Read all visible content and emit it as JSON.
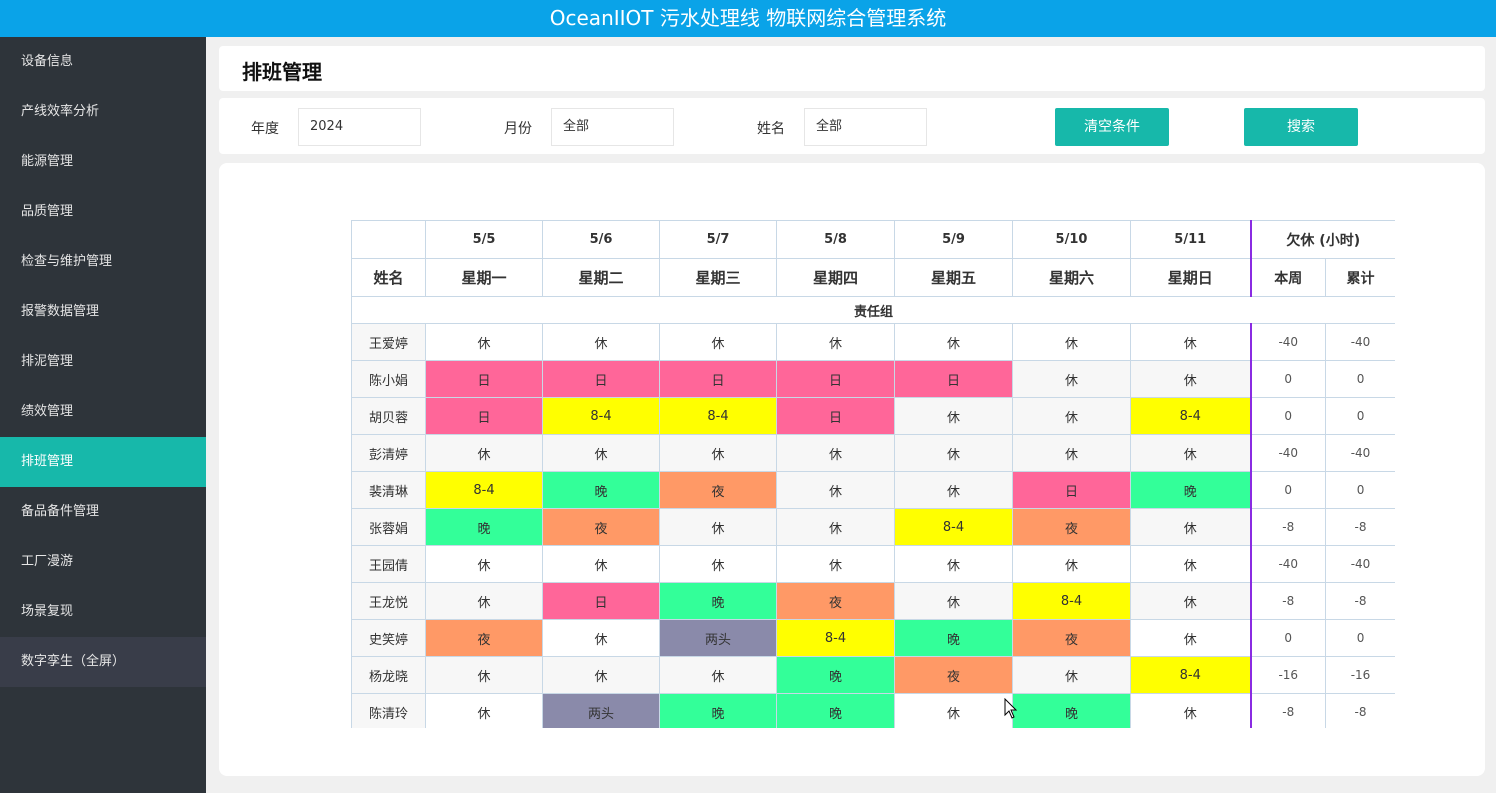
{
  "app": {
    "title": "OceanIIOT 污水处理线 物联网综合管理系统"
  },
  "sidebar": {
    "items": [
      {
        "label": "设备信息",
        "active": false
      },
      {
        "label": "产线效率分析",
        "active": false
      },
      {
        "label": "能源管理",
        "active": false
      },
      {
        "label": "品质管理",
        "active": false
      },
      {
        "label": "检查与维护管理",
        "active": false
      },
      {
        "label": "报警数据管理",
        "active": false
      },
      {
        "label": "排泥管理",
        "active": false
      },
      {
        "label": "绩效管理",
        "active": false
      },
      {
        "label": "排班管理",
        "active": true
      },
      {
        "label": "备品备件管理",
        "active": false
      },
      {
        "label": "工厂漫游",
        "active": false
      },
      {
        "label": "场景复现",
        "active": false
      },
      {
        "label": "数字孪生（全屏）",
        "active": false
      }
    ]
  },
  "page": {
    "title": "排班管理"
  },
  "filters": {
    "year_label": "年度",
    "year_value": "2024",
    "month_label": "月份",
    "month_value": "全部",
    "name_label": "姓名",
    "name_value": "全部",
    "clear_label": "清空条件",
    "search_label": "搜索"
  },
  "schedule": {
    "dates": [
      "5/5",
      "5/6",
      "5/7",
      "5/8",
      "5/9",
      "5/10",
      "5/11"
    ],
    "days": [
      "星期一",
      "星期二",
      "星期三",
      "星期四",
      "星期五",
      "星期六",
      "星期日"
    ],
    "name_header": "姓名",
    "owe_header": "欠休 (小时)",
    "week_header": "本周",
    "total_header": "累计",
    "group_name": "责任组",
    "shift_colors": {
      "日": "#ff6699",
      "8-4": "#ffff00",
      "晚": "#33ff99",
      "夜": "#ff9966",
      "两头": "#8a8aaa"
    },
    "rows": [
      {
        "name": "王爱婷",
        "shifts": [
          "休",
          "休",
          "休",
          "休",
          "休",
          "休",
          "休"
        ],
        "week": "-40",
        "total": "-40"
      },
      {
        "name": "陈小娟",
        "shifts": [
          "日",
          "日",
          "日",
          "日",
          "日",
          "休",
          "休"
        ],
        "week": "0",
        "total": "0"
      },
      {
        "name": "胡贝蓉",
        "shifts": [
          "日",
          "8-4",
          "8-4",
          "日",
          "休",
          "休",
          "8-4"
        ],
        "week": "0",
        "total": "0"
      },
      {
        "name": "彭清婷",
        "shifts": [
          "休",
          "休",
          "休",
          "休",
          "休",
          "休",
          "休"
        ],
        "week": "-40",
        "total": "-40"
      },
      {
        "name": "裴清琳",
        "shifts": [
          "8-4",
          "晚",
          "夜",
          "休",
          "休",
          "日",
          "晚"
        ],
        "week": "0",
        "total": "0"
      },
      {
        "name": "张蓉娟",
        "shifts": [
          "晚",
          "夜",
          "休",
          "休",
          "8-4",
          "夜",
          "休"
        ],
        "week": "-8",
        "total": "-8"
      },
      {
        "name": "王园倩",
        "shifts": [
          "休",
          "休",
          "休",
          "休",
          "休",
          "休",
          "休"
        ],
        "week": "-40",
        "total": "-40"
      },
      {
        "name": "王龙悦",
        "shifts": [
          "休",
          "日",
          "晚",
          "夜",
          "休",
          "8-4",
          "休"
        ],
        "week": "-8",
        "total": "-8"
      },
      {
        "name": "史笑婷",
        "shifts": [
          "夜",
          "休",
          "两头",
          "8-4",
          "晚",
          "夜",
          "休"
        ],
        "week": "0",
        "total": "0"
      },
      {
        "name": "杨龙晓",
        "shifts": [
          "休",
          "休",
          "休",
          "晚",
          "夜",
          "休",
          "8-4"
        ],
        "week": "-16",
        "total": "-16"
      },
      {
        "name": "陈清玲",
        "shifts": [
          "休",
          "两头",
          "晚",
          "晚",
          "休",
          "晚",
          "休"
        ],
        "week": "-8",
        "total": "-8"
      }
    ]
  }
}
